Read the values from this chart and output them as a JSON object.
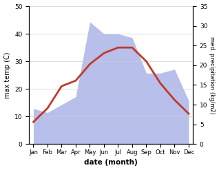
{
  "months": [
    "Jan",
    "Feb",
    "Mar",
    "Apr",
    "May",
    "Jun",
    "Jul",
    "Aug",
    "Sep",
    "Oct",
    "Nov",
    "Dec"
  ],
  "max_temp": [
    8,
    13,
    21,
    23,
    29,
    33,
    35,
    35,
    30,
    22,
    16,
    11
  ],
  "precipitation": [
    9,
    8,
    10,
    12,
    31,
    28,
    28,
    27,
    18,
    18,
    19,
    11
  ],
  "temp_color": "#c0392b",
  "precip_fill_color": "#b0b8e8",
  "ylabel_left": "max temp (C)",
  "ylabel_right": "med. precipitation (kg/m2)",
  "xlabel": "date (month)",
  "ylim_left": [
    0,
    50
  ],
  "ylim_right": [
    0,
    35
  ],
  "background_color": "#ffffff"
}
